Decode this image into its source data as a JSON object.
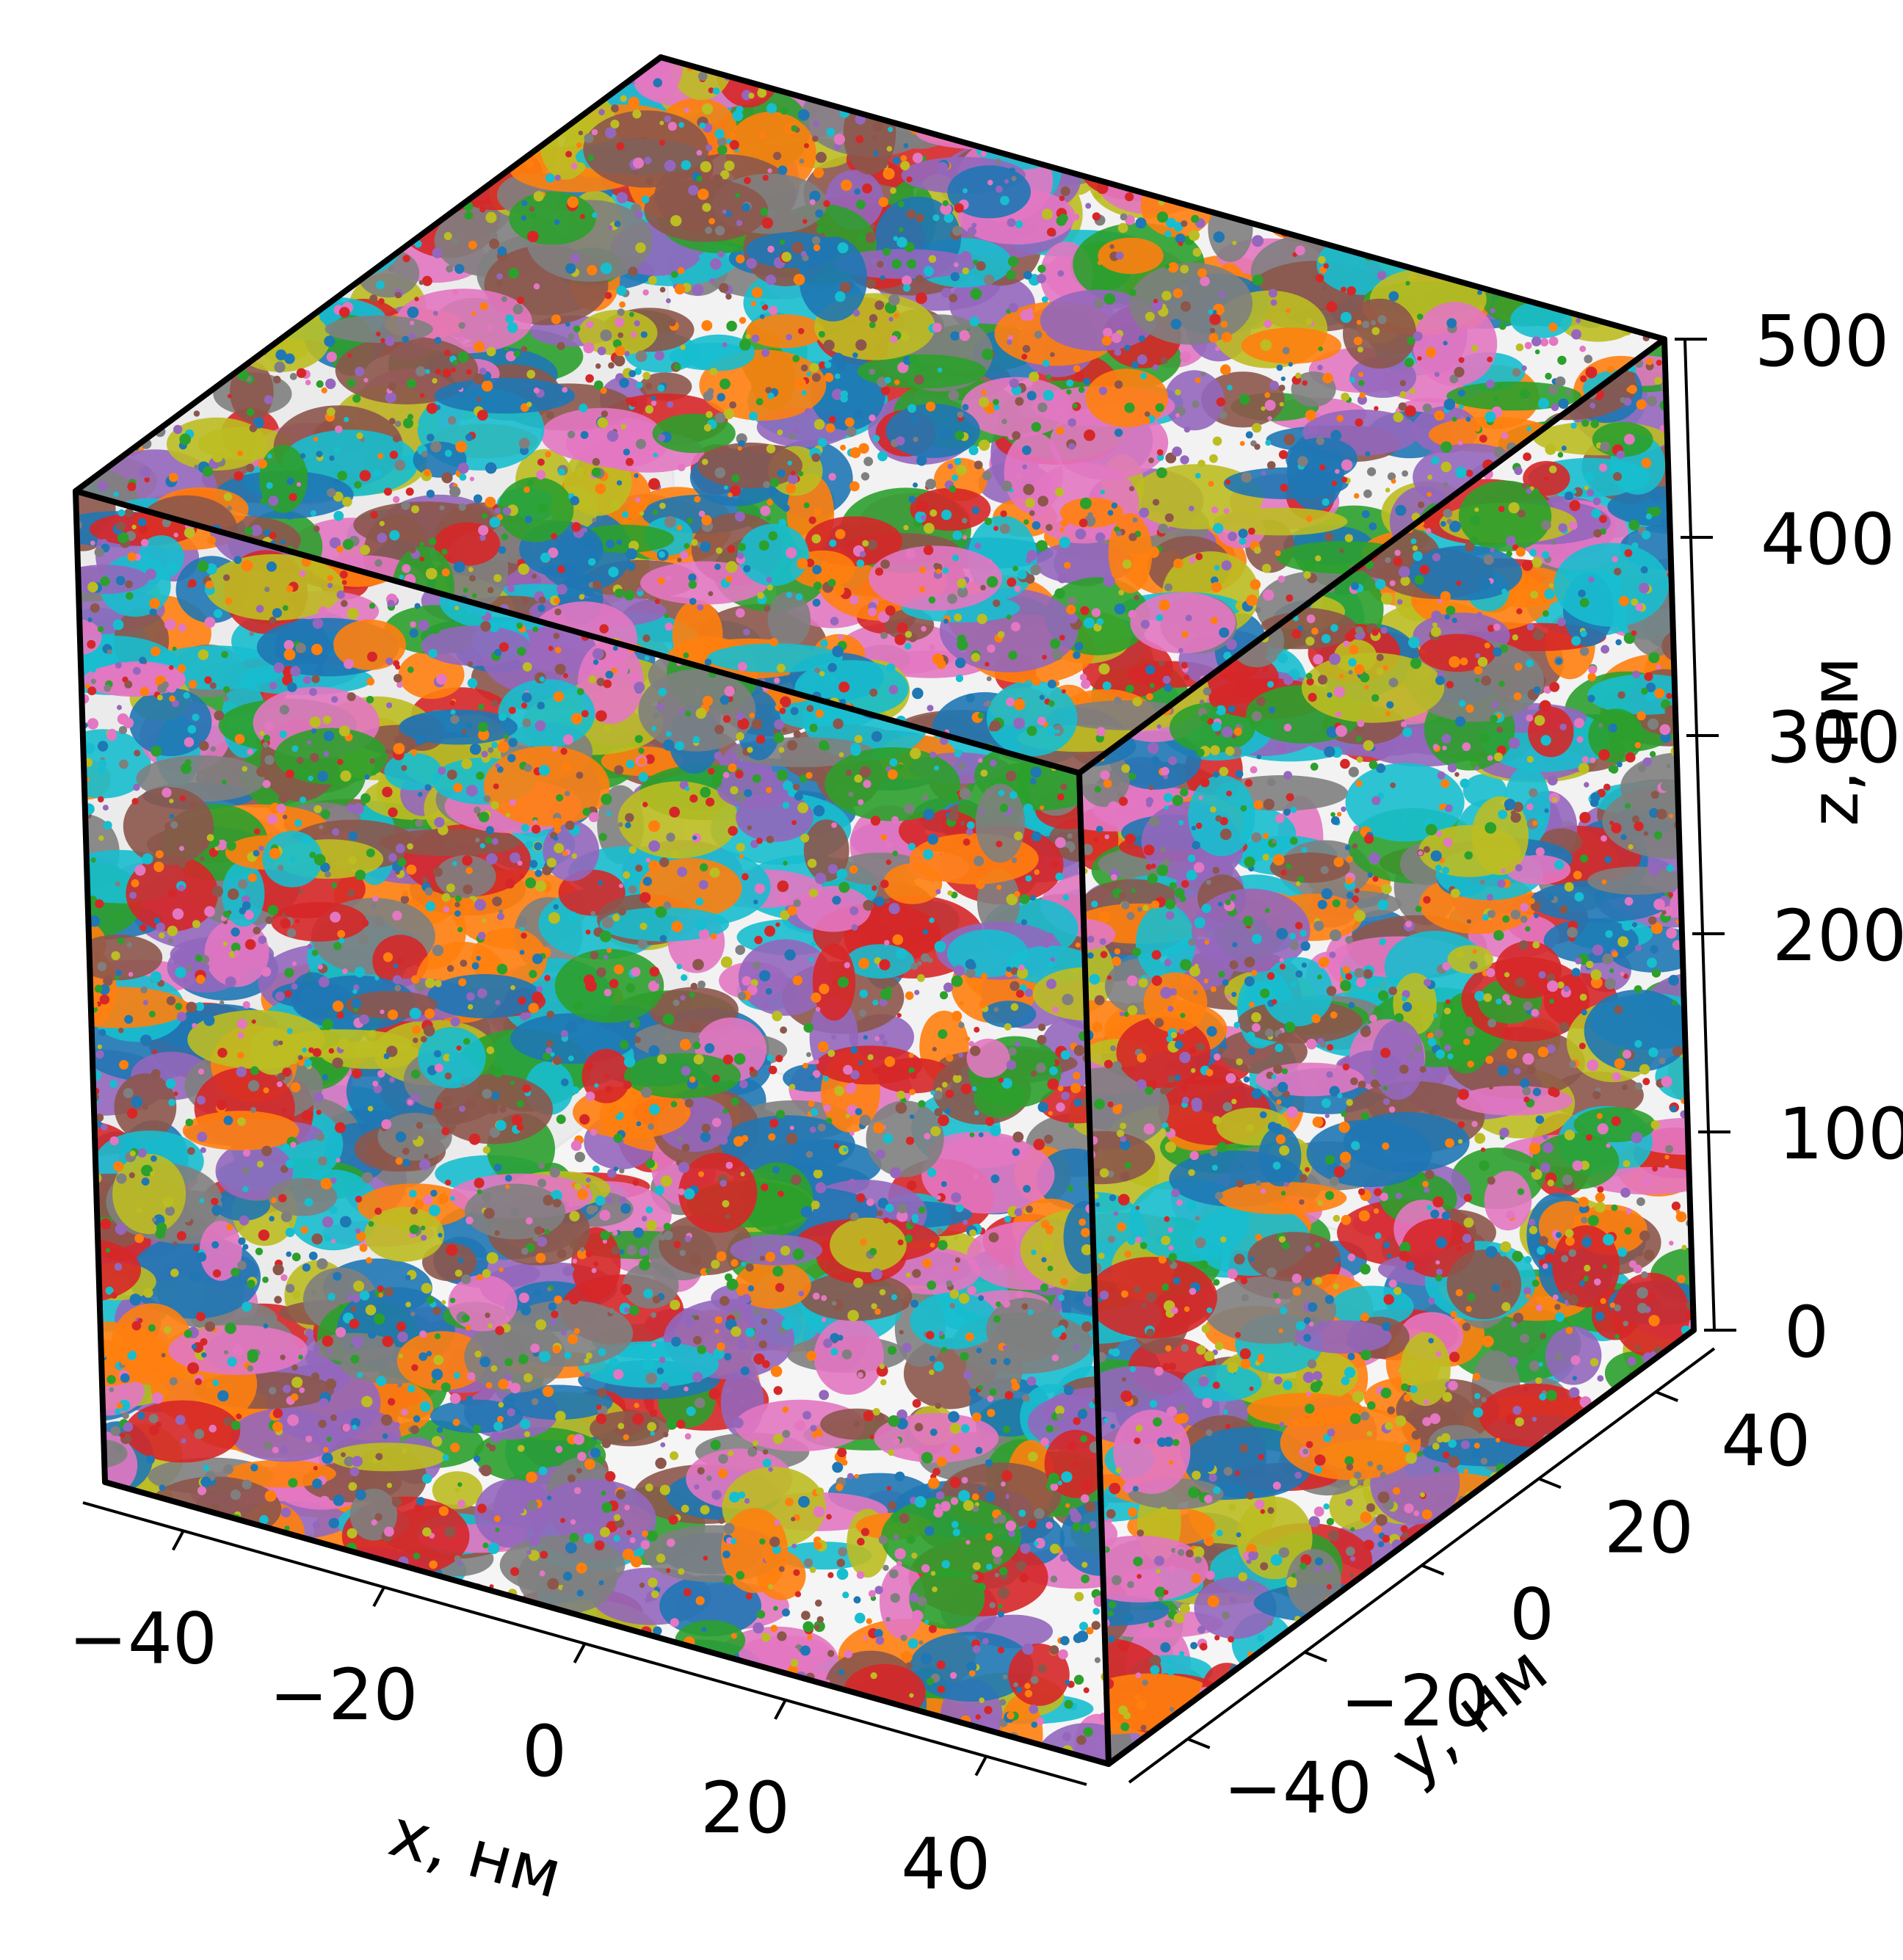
{
  "chart_data": {
    "type": "scatter",
    "projection": "3d",
    "title": "",
    "xlabel": "x, нм",
    "ylabel": "y, нм",
    "zlabel": "z, нм",
    "xlim": [
      -50,
      50
    ],
    "ylim": [
      -50,
      50
    ],
    "zlim": [
      0,
      500
    ],
    "x_ticks": [
      -40,
      -20,
      0,
      20,
      40
    ],
    "y_ticks": [
      -40,
      -20,
      0,
      20,
      40
    ],
    "z_ticks": [
      0,
      100,
      200,
      300,
      400,
      500
    ],
    "x_tick_labels": [
      "−40",
      "−20",
      "0",
      "20",
      "40"
    ],
    "y_tick_labels": [
      "−40",
      "−20",
      "0",
      "20",
      "40"
    ],
    "z_tick_labels": [
      "0",
      "100",
      "200",
      "300",
      "400",
      "500"
    ],
    "grid": false,
    "box_edges": "black",
    "cluster_colors": [
      "#1f77b4",
      "#ff7f0e",
      "#2ca02c",
      "#d62728",
      "#9467bd",
      "#8c564b",
      "#e377c2",
      "#7f7f7f",
      "#bcbd22",
      "#17becf"
    ],
    "description_series": "points colored by cluster, filling the 100×100×500 nm box"
  }
}
